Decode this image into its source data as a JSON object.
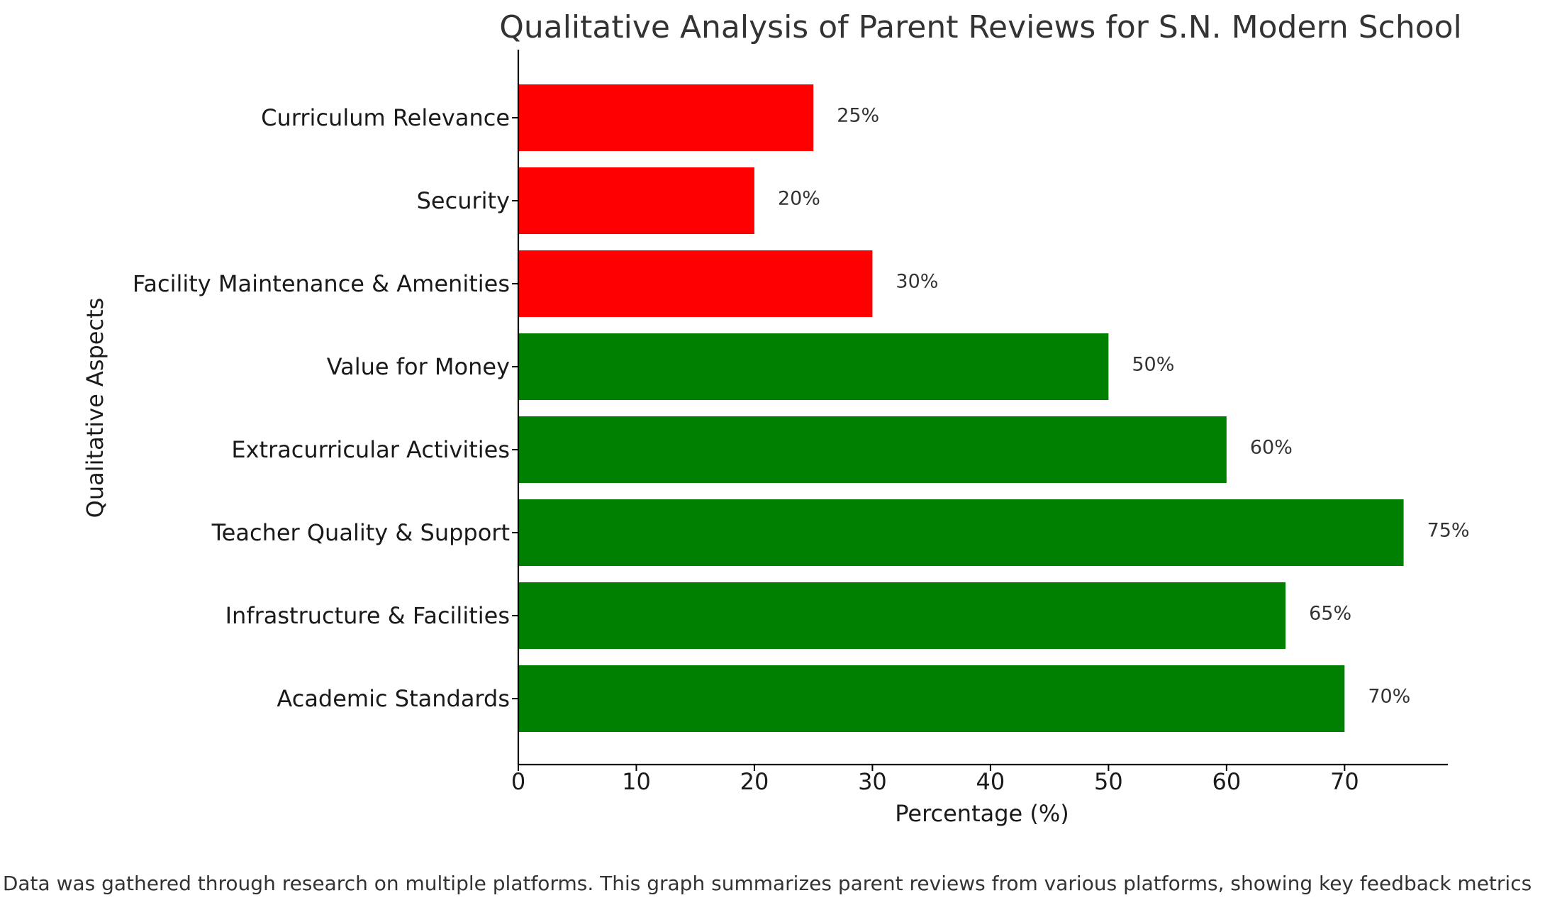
{
  "caption": "Data was gathered through research on multiple platforms. This graph summarizes parent reviews from various platforms, showing key feedback metrics",
  "chart_data": {
    "type": "bar",
    "orientation": "horizontal",
    "title": "Qualitative Analysis of Parent Reviews for S.N. Modern School",
    "xlabel": "Percentage (%)",
    "ylabel": "Qualitative Aspects",
    "xlim": [
      0,
      78.75
    ],
    "xticks": [
      0,
      10,
      20,
      30,
      40,
      50,
      60,
      70
    ],
    "grid": false,
    "categories": [
      "Academic Standards",
      "Infrastructure & Facilities",
      "Teacher Quality & Support",
      "Extracurricular Activities",
      "Value for Money",
      "Facility Maintenance & Amenities",
      "Security",
      "Curriculum Relevance"
    ],
    "values": [
      70,
      65,
      75,
      60,
      50,
      30,
      20,
      25
    ],
    "value_labels": [
      "70%",
      "65%",
      "75%",
      "60%",
      "50%",
      "30%",
      "20%",
      "25%"
    ],
    "colors": [
      "#008000",
      "#008000",
      "#008000",
      "#008000",
      "#008000",
      "#ff0000",
      "#ff0000",
      "#ff0000"
    ]
  }
}
